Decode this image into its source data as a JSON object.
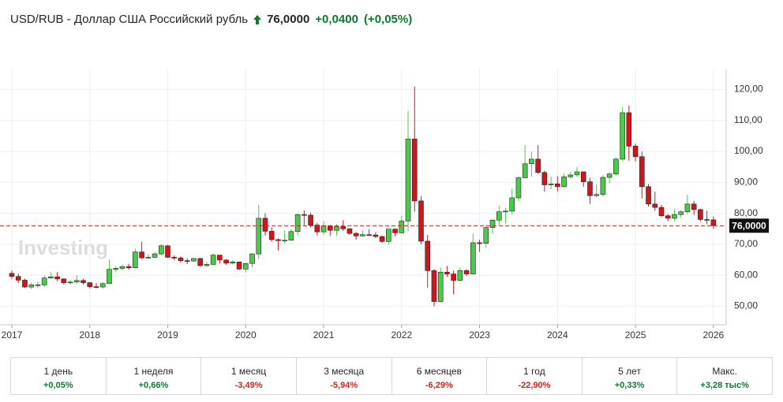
{
  "header": {
    "title": "USD/RUB - Доллар США Российский рубль",
    "price": "76,0000",
    "change": "+0,0400",
    "change_pct": "(+0,05%)"
  },
  "chart_data": {
    "type": "candlestick",
    "watermark": "Investing",
    "up_color": "#4cc94c",
    "down_color": "#d4141b",
    "wick_color": "#222222",
    "categories": [
      "2017",
      null,
      null,
      null,
      null,
      null,
      null,
      null,
      null,
      null,
      null,
      null,
      "2018",
      null,
      null,
      null,
      null,
      null,
      null,
      null,
      null,
      null,
      null,
      null,
      "2019",
      null,
      null,
      null,
      null,
      null,
      null,
      null,
      null,
      null,
      null,
      null,
      "2020",
      null,
      null,
      null,
      null,
      null,
      null,
      null,
      null,
      null,
      null,
      null,
      "2021",
      null,
      null,
      null,
      null,
      null,
      null,
      null,
      null,
      null,
      null,
      null,
      "2022",
      null,
      null,
      null,
      null,
      null,
      null,
      null,
      null,
      null,
      null,
      null,
      "2023",
      null,
      null,
      null,
      null,
      null,
      null,
      null,
      null,
      null,
      null,
      null,
      "2024",
      null,
      null,
      null,
      null,
      null,
      null,
      null,
      null,
      null,
      null,
      null,
      "2025",
      null,
      null,
      null,
      null,
      null,
      null,
      null,
      null,
      null,
      null,
      null,
      "2026"
    ],
    "open": [
      60.6,
      59.6,
      58.4,
      56.2,
      56.9,
      56.9,
      59.1,
      59.5,
      58.8,
      57.6,
      57.8,
      58.3,
      57.6,
      56.3,
      56.2,
      57.3,
      61.9,
      62.2,
      62.8,
      62.4,
      67.5,
      65.6,
      65.8,
      66.9,
      69.5,
      65.8,
      65.6,
      64.7,
      64.6,
      65.4,
      63.1,
      63.5,
      66.5,
      64.9,
      63.9,
      64.3,
      62.0,
      63.8,
      66.9,
      78.4,
      74.2,
      71.5,
      71.2,
      71.3,
      74.1,
      79.6,
      79.4,
      76.2,
      74.0,
      75.9,
      74.5,
      75.7,
      75.0,
      73.5,
      72.7,
      73.1,
      73.0,
      72.5,
      70.9,
      74.9,
      73.7,
      77.5,
      104.0,
      84.0,
      71.0,
      61.5,
      51.5,
      61.0,
      60.4,
      58.3,
      61.5,
      60.4,
      70.5,
      70.3,
      75.4,
      77.8,
      80.5,
      80.7,
      85.0,
      91.5,
      96.0,
      97.5,
      93.2,
      89.2,
      89.5,
      88.6,
      91.8,
      92.4,
      93.4,
      90.2,
      85.7,
      86.1,
      91.6,
      92.7,
      97.5,
      112.5,
      101.7,
      98.3,
      88.6,
      83.0,
      81.9,
      79.2,
      78.4,
      79.6,
      80.5,
      83.0,
      81.2,
      78.0,
      77.9
    ],
    "high": [
      61.5,
      60.5,
      58.9,
      57.6,
      58.0,
      60.0,
      61.0,
      61.0,
      59.0,
      58.6,
      60.0,
      58.8,
      57.8,
      57.5,
      57.8,
      65.0,
      63.0,
      63.5,
      63.7,
      68.6,
      70.8,
      66.8,
      67.5,
      70.0,
      69.8,
      66.4,
      66.1,
      65.4,
      65.6,
      65.6,
      64.3,
      67.0,
      66.6,
      65.2,
      64.9,
      64.4,
      64.0,
      67.0,
      82.8,
      80.0,
      75.4,
      71.9,
      74.5,
      74.9,
      80.0,
      81.0,
      80.2,
      76.9,
      77.5,
      76.2,
      76.5,
      77.8,
      75.2,
      74.0,
      74.5,
      74.8,
      73.8,
      72.8,
      75.0,
      75.0,
      79.2,
      113.0,
      121.0,
      85.5,
      73.0,
      62.0,
      62.5,
      63.0,
      61.5,
      62.5,
      62.0,
      73.4,
      71.5,
      76.0,
      78.0,
      82.5,
      81.8,
      88.0,
      92.0,
      102.0,
      99.9,
      102.0,
      93.8,
      91.8,
      92.0,
      92.8,
      93.4,
      95.0,
      93.5,
      91.5,
      89.3,
      92.4,
      93.3,
      98.0,
      114.2,
      114.8,
      102.5,
      100.0,
      89.5,
      87.0,
      82.8,
      79.8,
      81.3,
      81.0,
      86.0,
      84.0,
      81.5,
      80.8,
      79.0
    ],
    "low": [
      58.8,
      57.5,
      55.9,
      55.5,
      55.8,
      56.1,
      58.8,
      58.1,
      57.0,
      57.0,
      57.3,
      57.0,
      55.7,
      55.8,
      55.7,
      57.2,
      61.0,
      61.5,
      61.8,
      62.3,
      65.3,
      65.3,
      65.4,
      66.5,
      65.6,
      64.8,
      64.0,
      63.6,
      64.2,
      62.8,
      62.7,
      63.2,
      63.7,
      63.3,
      63.5,
      61.7,
      60.9,
      62.5,
      65.2,
      72.8,
      70.8,
      68.0,
      70.3,
      71.8,
      72.9,
      76.0,
      75.4,
      72.8,
      73.0,
      72.8,
      72.8,
      74.3,
      73.1,
      71.5,
      72.4,
      72.7,
      72.0,
      70.5,
      69.9,
      72.6,
      73.5,
      74.3,
      80.5,
      70.0,
      56.0,
      50.0,
      51.2,
      59.5,
      53.8,
      58.0,
      59.8,
      60.2,
      67.5,
      68.8,
      73.3,
      76.2,
      76.8,
      79.6,
      84.0,
      91.4,
      91.8,
      92.7,
      87.0,
      87.8,
      87.1,
      88.5,
      91.2,
      91.7,
      88.6,
      83.0,
      85.2,
      85.4,
      89.8,
      92.1,
      96.8,
      97.0,
      96.8,
      84.8,
      82.2,
      80.8,
      78.8,
      77.5,
      77.5,
      78.6,
      79.7,
      79.5,
      77.4,
      76.5,
      75.0
    ],
    "close": [
      59.6,
      58.4,
      56.2,
      56.9,
      56.9,
      59.1,
      59.5,
      58.8,
      57.6,
      57.8,
      58.3,
      57.6,
      56.3,
      56.2,
      57.3,
      61.9,
      62.2,
      62.8,
      62.4,
      67.5,
      65.6,
      65.8,
      66.9,
      69.5,
      65.8,
      65.6,
      64.7,
      64.6,
      65.4,
      63.1,
      63.5,
      66.5,
      64.9,
      63.9,
      64.3,
      62.0,
      63.8,
      66.9,
      78.4,
      74.2,
      71.5,
      71.2,
      71.3,
      74.1,
      79.6,
      79.4,
      76.2,
      74.0,
      75.9,
      74.5,
      75.7,
      75.0,
      73.5,
      72.7,
      73.1,
      73.0,
      72.5,
      70.9,
      74.9,
      73.7,
      77.5,
      104.0,
      84.0,
      71.0,
      61.5,
      51.5,
      61.0,
      60.4,
      58.3,
      61.5,
      60.4,
      70.5,
      70.3,
      75.4,
      77.8,
      80.5,
      80.7,
      85.0,
      91.5,
      96.0,
      97.5,
      93.2,
      89.2,
      89.5,
      88.6,
      91.8,
      92.4,
      93.4,
      90.2,
      85.7,
      86.1,
      91.6,
      92.7,
      97.5,
      112.5,
      101.7,
      98.3,
      88.6,
      83.0,
      81.9,
      79.2,
      78.4,
      79.6,
      80.5,
      83.0,
      81.2,
      78.0,
      77.9,
      76.0
    ],
    "ylim": [
      44,
      126.5
    ],
    "yticks": [
      {
        "value": 50,
        "label": "50,00"
      },
      {
        "value": 60,
        "label": "60,00"
      },
      {
        "value": 70,
        "label": "70,00"
      },
      {
        "value": 80,
        "label": "80,00"
      },
      {
        "value": 90,
        "label": "90,00"
      },
      {
        "value": 100,
        "label": "100,00"
      },
      {
        "value": 110,
        "label": "110,00"
      },
      {
        "value": 120,
        "label": "120,00"
      }
    ],
    "grid": true,
    "last_price": {
      "value": 76,
      "label": "76,0000"
    },
    "last_price_color": "#c62828"
  },
  "performance": [
    {
      "period": "1 день",
      "change": "+0,05%"
    },
    {
      "period": "1 неделя",
      "change": "+0,66%"
    },
    {
      "period": "1 месяц",
      "change": "-3,49%"
    },
    {
      "period": "3 месяца",
      "change": "-5,94%"
    },
    {
      "period": "6 месяцев",
      "change": "-6,29%"
    },
    {
      "period": "1 год",
      "change": "-22,90%"
    },
    {
      "period": "5 лет",
      "change": "+0,33%"
    },
    {
      "period": "Макс.",
      "change": "+3,28 тыс%"
    }
  ]
}
